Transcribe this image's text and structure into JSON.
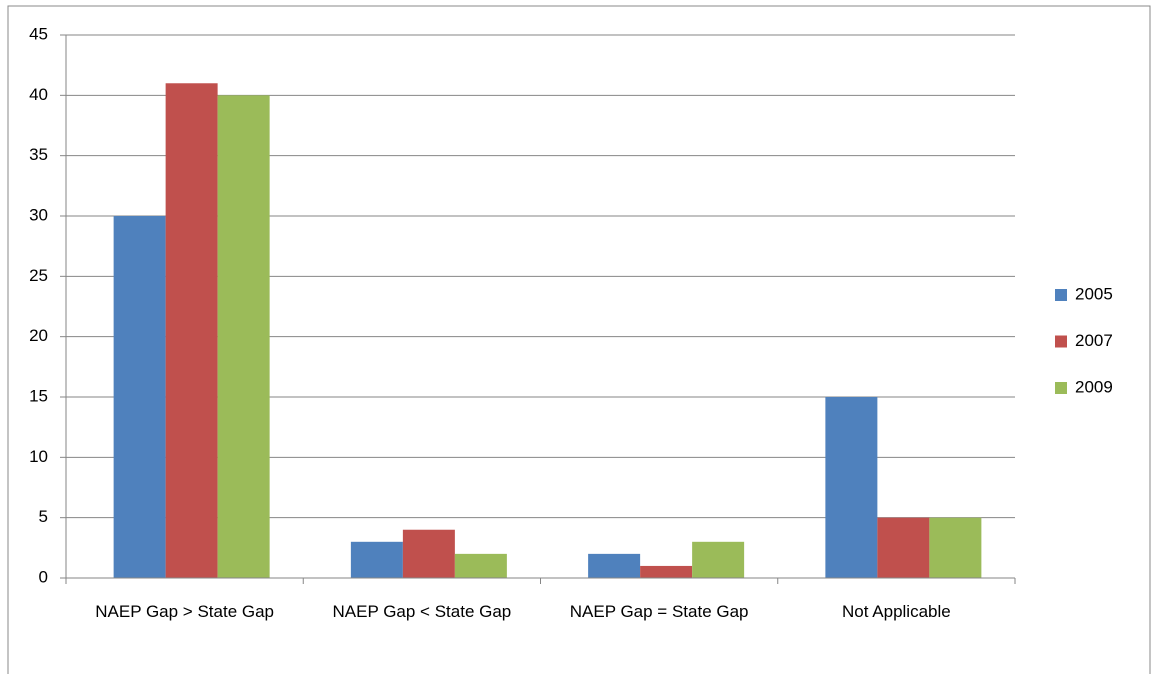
{
  "chart_data": {
    "type": "bar",
    "categories": [
      "NAEP Gap > State Gap",
      "NAEP Gap < State Gap",
      "NAEP Gap = State Gap",
      "Not Applicable"
    ],
    "series": [
      {
        "name": "2005",
        "color": "#4f81bd",
        "values": [
          30,
          3,
          2,
          15
        ]
      },
      {
        "name": "2007",
        "color": "#c0504d",
        "values": [
          41,
          4,
          1,
          5
        ]
      },
      {
        "name": "2009",
        "color": "#9bbb59",
        "values": [
          40,
          2,
          3,
          5
        ]
      }
    ],
    "ylim": [
      0,
      45
    ],
    "yticks": [
      0,
      5,
      10,
      15,
      20,
      25,
      30,
      35,
      40,
      45
    ],
    "grid": true,
    "legend": "right"
  }
}
